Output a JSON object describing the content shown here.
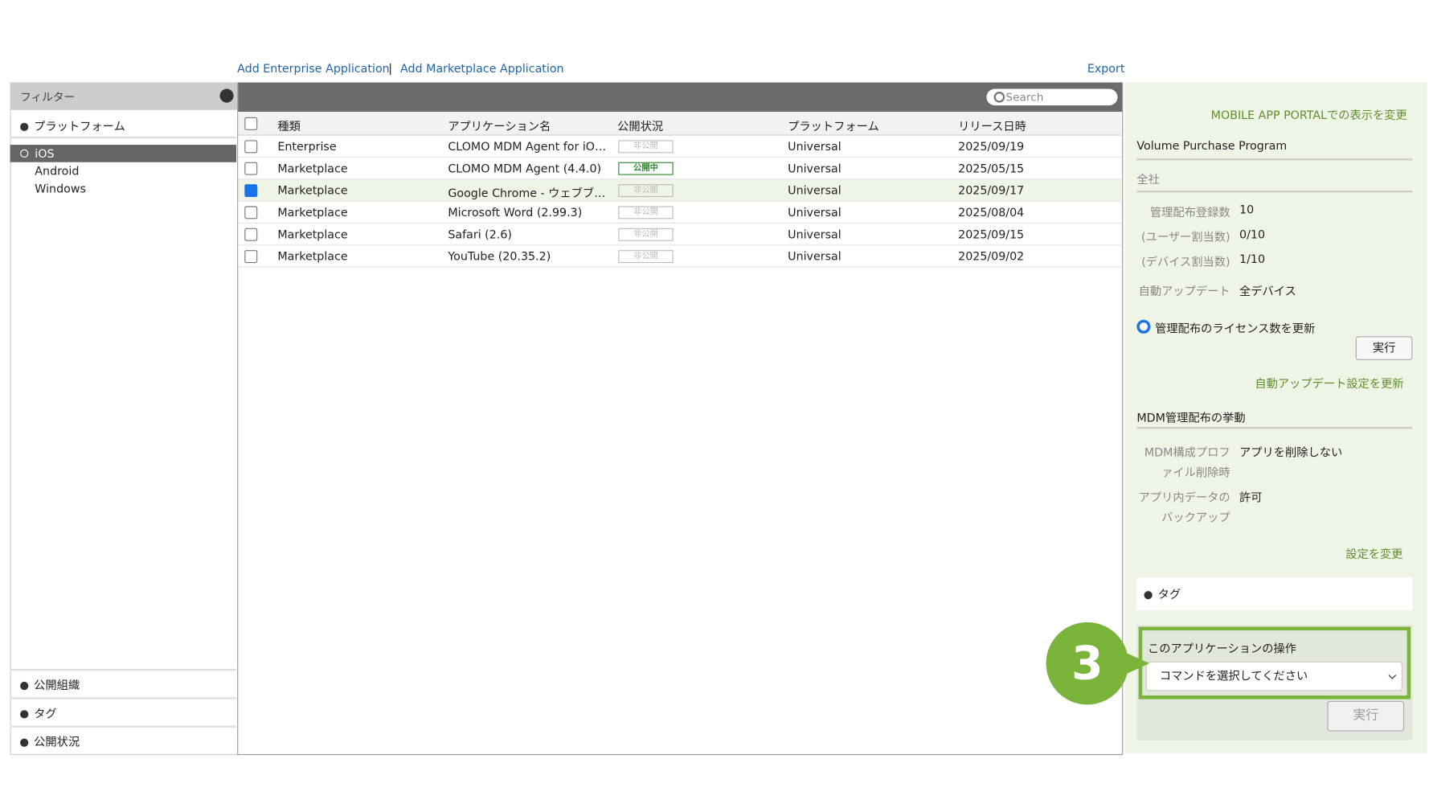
{
  "toolbar": {
    "links": [
      "Add Enterprise Application",
      "Add Marketplace Application"
    ],
    "separator": "|",
    "export": "Export"
  },
  "filter": {
    "title": "フィルター",
    "platform_header": "プラットフォーム",
    "platforms": [
      "iOS",
      "Android",
      "Windows"
    ],
    "selected_platform": 0,
    "bottom_sections": [
      "公開組織",
      "タグ",
      "公開状況"
    ]
  },
  "table": {
    "search_placeholder": "Search",
    "columns": [
      "種類",
      "アプリケーション名",
      "公開状況",
      "プラットフォーム",
      "リリース日時"
    ],
    "rows": [
      [
        "Enterprise",
        "CLOMO MDM Agent for iO…",
        "非公開",
        "Universal",
        "2025/09/19"
      ],
      [
        "Marketplace",
        "CLOMO MDM Agent (4.4.0)",
        "公開中",
        "Universal",
        "2025/05/15"
      ],
      [
        "Marketplace",
        "Google Chrome - ウェブブ…",
        "非公開",
        "Universal",
        "2025/09/17"
      ],
      [
        "Marketplace",
        "Microsoft Word (2.99.3)",
        "非公開",
        "Universal",
        "2025/08/04"
      ],
      [
        "Marketplace",
        "Safari (2.6)",
        "非公開",
        "Universal",
        "2025/09/15"
      ],
      [
        "Marketplace",
        "YouTube (20.35.2)",
        "非公開",
        "Universal",
        "2025/09/02"
      ]
    ],
    "checked": [
      false,
      false,
      true,
      false,
      false,
      false
    ]
  },
  "right": {
    "portal_link": "MOBILE APP PORTALでの表示を変更",
    "vpp_title": "Volume Purchase Program",
    "vpp_scope": "全社",
    "vpp_fields": [
      {
        "label": "管理配布登録数",
        "value": "10"
      },
      {
        "label": "(ユーザー割当数)",
        "value": "0/10"
      },
      {
        "label": "(デバイス割当数)",
        "value": "1/10"
      },
      {
        "label": "自動アップデート",
        "value": "全デバイス"
      }
    ],
    "radio_label": "管理配布のライセンス数を更新",
    "run_button": "実行",
    "auto_update_link": "自動アップデート設定を更新",
    "mdm_title": "MDM管理配布の挙動",
    "mdm_fields": [
      {
        "label": "MDM構成プロファイル削除時",
        "value": "アプリを削除しない"
      },
      {
        "label": "アプリ内データのバックアップ",
        "value": "許可"
      }
    ],
    "settings_link": "設定を変更",
    "tag_section": "タグ",
    "operation_title": "このアプリケーションの操作",
    "command_placeholder": "コマンドを選択してください",
    "execute_button": "実行",
    "step_badge": "3"
  }
}
